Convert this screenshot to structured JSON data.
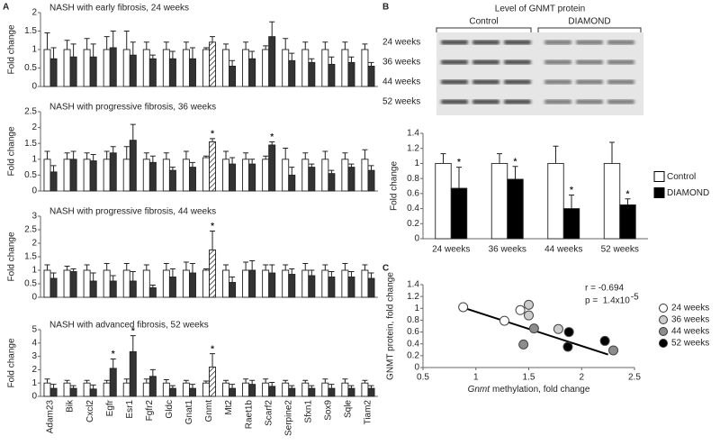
{
  "chart_data": [
    {
      "type": "bar",
      "panel": "A",
      "title": "NASH with early fibrosis, 24 weeks",
      "ylabel": "Fold change",
      "categories": [
        "Adam23",
        "Bik",
        "Cxcl2",
        "Egfr",
        "Esr1",
        "Fgfr2",
        "Gldc",
        "Gnat1",
        "Gnmt",
        "Mt2",
        "Raet1b",
        "Scarf2",
        "Serpine2",
        "Sfxn1",
        "Sox9",
        "Sqle",
        "Tiam2"
      ],
      "hatched_category": "Gnmt",
      "series": [
        {
          "color": "#ffffff",
          "values": [
            1,
            1,
            1,
            1,
            1,
            1,
            1,
            1,
            1,
            1,
            1,
            1,
            1,
            1,
            1,
            1,
            1
          ],
          "errors": [
            0.45,
            0.25,
            0.3,
            0.35,
            0.5,
            0.2,
            0.2,
            0.2,
            0.05,
            0.15,
            0.2,
            0.1,
            0.3,
            0.2,
            0.2,
            0.2,
            0.15
          ]
        },
        {
          "color": "#333333",
          "values": [
            0.75,
            0.8,
            0.8,
            1.05,
            0.85,
            0.75,
            0.75,
            0.75,
            1.2,
            0.55,
            0.75,
            1.35,
            0.7,
            0.65,
            0.6,
            0.65,
            0.55
          ],
          "errors": [
            0.3,
            0.35,
            0.35,
            0.45,
            0.35,
            0.1,
            0.2,
            0.3,
            0.15,
            0.15,
            0.2,
            0.4,
            0.2,
            0.1,
            0.2,
            0.15,
            0.1
          ]
        }
      ],
      "ylim": [
        0,
        2
      ],
      "yticks": [
        0,
        0.5,
        1,
        1.5,
        2
      ],
      "annotations": []
    },
    {
      "type": "bar",
      "title": "NASH with progressive fibrosis, 36 weeks",
      "ylabel": "Fold change",
      "categories": [
        "Adam23",
        "Bik",
        "Cxcl2",
        "Egfr",
        "Esr1",
        "Fgfr2",
        "Gldc",
        "Gnat1",
        "Gnmt",
        "Mt2",
        "Raet1b",
        "Scarf2",
        "Serpine2",
        "Sfxn1",
        "Sox9",
        "Sqle",
        "Tiam2"
      ],
      "hatched_category": "Gnmt",
      "series": [
        {
          "color": "#ffffff",
          "values": [
            1,
            1,
            1,
            1,
            1,
            1,
            1,
            1,
            1.05,
            1,
            1,
            1,
            1,
            1,
            1,
            1,
            1
          ],
          "errors": [
            0.25,
            0.2,
            0.2,
            0.25,
            0.4,
            0.2,
            0.2,
            0.25,
            0.05,
            0.25,
            0.2,
            0.1,
            0.35,
            0.2,
            0.25,
            0.2,
            0.3
          ]
        },
        {
          "color": "#333333",
          "values": [
            0.6,
            1.0,
            0.95,
            1.2,
            1.6,
            0.9,
            0.65,
            0.75,
            1.55,
            0.85,
            0.85,
            1.45,
            0.5,
            0.75,
            0.55,
            0.75,
            0.65
          ],
          "errors": [
            0.2,
            0.25,
            0.2,
            0.2,
            0.5,
            0.2,
            0.1,
            0.15,
            0.1,
            0.2,
            0.15,
            0.1,
            0.25,
            0.1,
            0.1,
            0.1,
            0.15
          ]
        }
      ],
      "ylim": [
        0,
        2.5
      ],
      "yticks": [
        0,
        0.5,
        1,
        1.5,
        2,
        2.5
      ],
      "annotations": [
        {
          "text": "*",
          "x": "Gnmt"
        },
        {
          "text": "*",
          "x": "Scarf2"
        }
      ]
    },
    {
      "type": "bar",
      "title": "NASH with progressive fibrosis, 44 weeks",
      "ylabel": "Fold change",
      "categories": [
        "Adam23",
        "Bik",
        "Cxcl2",
        "Egfr",
        "Esr1",
        "Fgfr2",
        "Gldc",
        "Gnat1",
        "Gnmt",
        "Mt2",
        "Raet1b",
        "Scarf2",
        "Serpine2",
        "Sfxn1",
        "Sox9",
        "Sqle",
        "Tiam2"
      ],
      "hatched_category": "Gnmt",
      "series": [
        {
          "color": "#ffffff",
          "values": [
            1,
            1,
            1,
            1,
            1,
            1,
            1,
            1,
            1,
            1,
            1,
            1,
            1,
            1,
            1,
            1,
            1
          ],
          "errors": [
            0.2,
            0.15,
            0.2,
            0.25,
            0.25,
            0.2,
            0.25,
            0.3,
            0.05,
            0.2,
            0.3,
            0.2,
            0.2,
            0.25,
            0.2,
            0.25,
            0.2
          ]
        },
        {
          "color": "#333333",
          "values": [
            0.7,
            0.95,
            0.6,
            0.6,
            0.6,
            0.35,
            0.75,
            0.9,
            1.75,
            0.55,
            1.0,
            0.9,
            0.85,
            0.8,
            0.75,
            0.75,
            0.7
          ],
          "errors": [
            0.2,
            0.1,
            0.3,
            0.2,
            0.35,
            0.1,
            0.3,
            0.35,
            0.7,
            0.2,
            0.35,
            0.3,
            0.2,
            0.2,
            0.2,
            0.2,
            0.2
          ]
        }
      ],
      "ylim": [
        0,
        3
      ],
      "yticks": [
        0,
        0.5,
        1,
        1.5,
        2,
        2.5,
        3
      ],
      "annotations": [
        {
          "text": "*",
          "x": "Gnmt"
        }
      ]
    },
    {
      "type": "bar",
      "title": "NASH with advanced fibrosis, 52 weeks",
      "ylabel": "Fold change",
      "categories": [
        "Adam23",
        "Bik",
        "Cxcl2",
        "Egfr",
        "Esr1",
        "Fgfr2",
        "Gldc",
        "Gnat1",
        "Gnmt",
        "Mt2",
        "Raet1b",
        "Scarf2",
        "Serpine2",
        "Sfxn1",
        "Sox9",
        "Sqle",
        "Tiam2"
      ],
      "hatched_category": "Gnmt",
      "series": [
        {
          "color": "#ffffff",
          "values": [
            1,
            1,
            1,
            1,
            1,
            1,
            1,
            1,
            1,
            1,
            1,
            1,
            1,
            1,
            1,
            1,
            1
          ],
          "errors": [
            0.3,
            0.2,
            0.2,
            0.2,
            0.3,
            0.3,
            0.25,
            0.2,
            0.15,
            0.2,
            0.3,
            0.3,
            0.2,
            0.2,
            0.3,
            0.3,
            0.2
          ]
        },
        {
          "color": "#333333",
          "values": [
            0.6,
            0.6,
            0.55,
            2.1,
            3.35,
            1.5,
            0.6,
            0.6,
            2.2,
            0.6,
            0.9,
            0.75,
            0.6,
            0.6,
            0.6,
            0.6,
            0.6
          ],
          "errors": [
            0.3,
            0.2,
            0.3,
            0.7,
            1.2,
            0.5,
            0.2,
            0.3,
            1.0,
            0.3,
            0.3,
            0.3,
            0.2,
            0.2,
            0.3,
            0.2,
            0.2
          ]
        }
      ],
      "ylim": [
        0,
        5
      ],
      "yticks": [
        0,
        1,
        2,
        3,
        4,
        5
      ],
      "annotations": [
        {
          "text": "*",
          "x": "Egfr"
        },
        {
          "text": "*",
          "x": "Esr1"
        },
        {
          "text": "*",
          "x": "Gnmt"
        }
      ]
    },
    {
      "type": "bar",
      "panel": "B",
      "ylabel": "Fold change",
      "blot": {
        "title": "Level of GNMT protein",
        "groups": [
          "Control",
          "DIAMOND"
        ],
        "rows": [
          "24 weeks",
          "36 weeks",
          "44 weeks",
          "52 weeks"
        ]
      },
      "categories": [
        "24 weeks",
        "36 weeks",
        "44 weeks",
        "52 weeks"
      ],
      "series": [
        {
          "name": "Control",
          "color": "#ffffff",
          "values": [
            1,
            1,
            1,
            1
          ],
          "errors": [
            0.13,
            0.13,
            0.23,
            0.28
          ]
        },
        {
          "name": "DIAMOND",
          "color": "#000000",
          "values": [
            0.67,
            0.79,
            0.4,
            0.45
          ],
          "errors": [
            0.28,
            0.17,
            0.18,
            0.08
          ]
        }
      ],
      "ylim": [
        0,
        1.4
      ],
      "yticks": [
        0,
        0.2,
        0.4,
        0.6,
        0.8,
        1,
        1.2,
        1.4
      ],
      "legend": "right",
      "annotations": [
        {
          "text": "*",
          "x": "24 weeks"
        },
        {
          "text": "*",
          "x": "36 weeks"
        },
        {
          "text": "*",
          "x": "44 weeks"
        },
        {
          "text": "*",
          "x": "52 weeks"
        }
      ]
    },
    {
      "type": "scatter",
      "panel": "C",
      "ylabel": "GNMT protein, fold change",
      "xlabel": {
        "italic": "Gnmt",
        "text": "methylation, fold change"
      },
      "series": [
        {
          "name": "24 weeks",
          "color": "#ffffff",
          "x": [
            0.88,
            1.27,
            1.42
          ],
          "y": [
            1.02,
            0.79,
            0.97
          ]
        },
        {
          "name": "36 weeks",
          "color": "#cccccc",
          "x": [
            1.5,
            1.5,
            1.78
          ],
          "y": [
            1.06,
            0.88,
            0.65
          ]
        },
        {
          "name": "44 weeks",
          "color": "#8c8c8c",
          "x": [
            1.55,
            1.45,
            2.3
          ],
          "y": [
            0.66,
            0.39,
            0.29
          ]
        },
        {
          "name": "52 weeks",
          "color": "#000000",
          "x": [
            1.88,
            1.87,
            2.22
          ],
          "y": [
            0.6,
            0.35,
            0.45
          ]
        }
      ],
      "trendline": {
        "x": [
          0.9,
          2.25
        ],
        "y": [
          1.0,
          0.22
        ]
      },
      "xlim": [
        0.5,
        2.5
      ],
      "xticks": [
        0.5,
        1,
        1.5,
        2,
        2.5
      ],
      "ylim": [
        0,
        1.4
      ],
      "yticks": [
        0,
        0.2,
        0.4,
        0.6,
        0.8,
        1,
        1.2,
        1.4
      ],
      "legend": "right",
      "annotations": [
        {
          "text": "r = -0.694"
        },
        {
          "text": "p =  1.4x10",
          "sup": "-5"
        }
      ]
    }
  ]
}
